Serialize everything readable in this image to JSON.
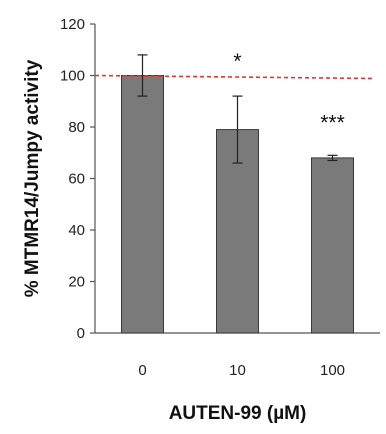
{
  "chart_data": {
    "type": "bar",
    "categories": [
      "0",
      "10",
      "100"
    ],
    "values": [
      100,
      79,
      68
    ],
    "errors": [
      8,
      13,
      1
    ],
    "annotations": [
      "",
      "*",
      "***"
    ],
    "reference_line": {
      "value": 100,
      "style": "dashed",
      "color": "#e8342c"
    },
    "xlabel": "AUTEN-99 (µM)",
    "ylabel": "% MTMR14/Jumpy activity",
    "ylim": [
      0,
      120
    ],
    "yticks": [
      0,
      20,
      40,
      60,
      80,
      100,
      120
    ],
    "bar_color": "#7a7a7a",
    "grid": false
  }
}
